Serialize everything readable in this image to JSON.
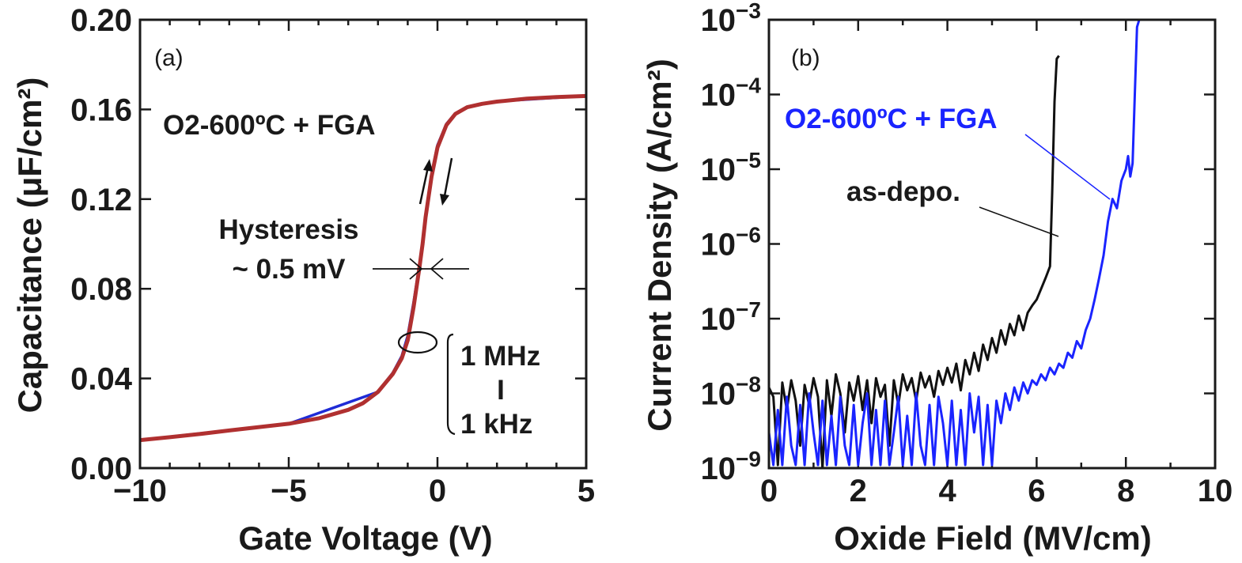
{
  "chart_data": [
    {
      "type": "line",
      "panel_label": "(a)",
      "xlabel": "Gate Voltage (V)",
      "ylabel": "Capacitance (μF/cm²)",
      "xlim": [
        -10,
        5
      ],
      "ylim": [
        0,
        0.2
      ],
      "x_ticks": [
        -10,
        -5,
        0,
        5
      ],
      "x_tick_labels": [
        "−10",
        "−5",
        "0",
        "5"
      ],
      "y_ticks": [
        0,
        0.04,
        0.08,
        0.12,
        0.16,
        0.2
      ],
      "y_tick_labels": [
        "0.00",
        "0.04",
        "0.08",
        "0.12",
        "0.16",
        "0.20"
      ],
      "grid": false,
      "series": [
        {
          "color": "#b03030",
          "x": [
            -10,
            -9,
            -8,
            -7,
            -6,
            -5,
            -4,
            -3,
            -2.5,
            -2,
            -1.5,
            -1.2,
            -1.0,
            -0.8,
            -0.6,
            -0.5,
            -0.4,
            -0.2,
            0,
            0.3,
            0.6,
            1.0,
            1.5,
            2,
            3,
            4,
            5
          ],
          "y": [
            0.0125,
            0.0138,
            0.0152,
            0.0168,
            0.0183,
            0.0198,
            0.0222,
            0.026,
            0.029,
            0.034,
            0.042,
            0.049,
            0.057,
            0.072,
            0.09,
            0.1,
            0.112,
            0.13,
            0.143,
            0.153,
            0.158,
            0.161,
            0.1625,
            0.1635,
            0.1648,
            0.1655,
            0.166
          ]
        },
        {
          "color": "#1f2bd6",
          "x": [
            -10,
            -5,
            -2,
            -1.5,
            -1.2,
            -1.0,
            -0.8,
            -0.6,
            -0.5,
            -0.4,
            -0.2,
            0,
            0.3,
            0.6,
            1.0,
            2,
            5
          ],
          "y": [
            0.0125,
            0.0198,
            0.034,
            0.0425,
            0.05,
            0.059,
            0.074,
            0.091,
            0.101,
            0.113,
            0.131,
            0.144,
            0.1535,
            0.1582,
            0.1612,
            0.1636,
            0.1661
          ]
        }
      ],
      "annotations": {
        "condition": "O2-600ºC + FGA",
        "hysteresis_title": "Hysteresis",
        "hysteresis_value": "~ 0.5 mV",
        "freq_high": "1 MHz",
        "freq_sep": "I",
        "freq_low": "1 kHz"
      }
    },
    {
      "type": "line",
      "panel_label": "(b)",
      "xlabel": "Oxide Field (MV/cm)",
      "ylabel": "Current Density (A/cm²)",
      "xlim": [
        0,
        10
      ],
      "ylim": [
        1e-09,
        0.001
      ],
      "yscale": "log",
      "x_ticks": [
        0,
        2,
        4,
        6,
        8,
        10
      ],
      "x_tick_labels": [
        "0",
        "2",
        "4",
        "6",
        "8",
        "10"
      ],
      "y_ticks": [
        -9,
        -8,
        -7,
        -6,
        -5,
        -4,
        -3
      ],
      "y_tick_labels": [
        "10−9",
        "10−8",
        "10−7",
        "10−6",
        "10−5",
        "10−4",
        "10−3"
      ],
      "grid": false,
      "series": [
        {
          "name": "as-depo.",
          "color": "#111111",
          "x": [
            0.0,
            0.1,
            0.2,
            0.3,
            0.4,
            0.5,
            0.6,
            0.7,
            0.8,
            0.9,
            1.0,
            1.1,
            1.2,
            1.3,
            1.4,
            1.5,
            1.6,
            1.7,
            1.8,
            1.9,
            2.0,
            2.1,
            2.2,
            2.3,
            2.4,
            2.5,
            2.6,
            2.7,
            2.8,
            2.9,
            3.0,
            3.1,
            3.2,
            3.3,
            3.4,
            3.5,
            3.6,
            3.7,
            3.8,
            3.9,
            4.0,
            4.1,
            4.2,
            4.3,
            4.4,
            4.5,
            4.6,
            4.7,
            4.8,
            4.9,
            5.0,
            5.1,
            5.2,
            5.3,
            5.4,
            5.5,
            5.6,
            5.7,
            5.8,
            5.9,
            6.0,
            6.1,
            6.2,
            6.3,
            6.35,
            6.4,
            6.45,
            6.5
          ],
          "y": [
            1.2e-08,
            9e-09,
            1.1e-09,
            1.4e-08,
            6e-09,
            1.5e-08,
            8e-09,
            2e-09,
            1.3e-08,
            7e-09,
            1.6e-08,
            9e-09,
            1e-09,
            1.5e-08,
            5e-09,
            1.8e-08,
            1e-08,
            3e-09,
            1.4e-08,
            8e-09,
            1.7e-08,
            6e-09,
            1.5e-08,
            4e-09,
            1.6e-08,
            9e-09,
            1.3e-08,
            2e-09,
            1.5e-08,
            7e-09,
            1.8e-08,
            1.1e-08,
            1.6e-08,
            8e-09,
            1.9e-08,
            1.2e-08,
            1.7e-08,
            9e-09,
            2e-08,
            1.3e-08,
            2.2e-08,
            1.4e-08,
            2.5e-08,
            1.1e-08,
            2.8e-08,
            1.8e-08,
            3.5e-08,
            2e-08,
            4.5e-08,
            2.8e-08,
            5.5e-08,
            3.5e-08,
            7e-08,
            4.5e-08,
            8.5e-08,
            6e-08,
            1.1e-07,
            7e-08,
            1.2e-07,
            1.5e-07,
            1.8e-07,
            2.5e-07,
            3.5e-07,
            5e-07,
            5e-06,
            8e-05,
            0.0003,
            0.00033
          ]
        },
        {
          "name": "O2-600ºC + FGA",
          "color": "#1a24ff",
          "x": [
            0.0,
            0.1,
            0.2,
            0.3,
            0.4,
            0.5,
            0.6,
            0.7,
            0.8,
            0.9,
            1.0,
            1.1,
            1.2,
            1.3,
            1.4,
            1.5,
            1.6,
            1.7,
            1.8,
            1.9,
            2.0,
            2.1,
            2.2,
            2.3,
            2.4,
            2.5,
            2.6,
            2.7,
            2.8,
            2.9,
            3.0,
            3.1,
            3.2,
            3.3,
            3.4,
            3.5,
            3.6,
            3.7,
            3.8,
            3.9,
            4.0,
            4.1,
            4.2,
            4.3,
            4.4,
            4.5,
            4.6,
            4.7,
            4.8,
            4.9,
            5.0,
            5.1,
            5.2,
            5.3,
            5.4,
            5.5,
            5.6,
            5.7,
            5.8,
            5.9,
            6.0,
            6.1,
            6.2,
            6.3,
            6.4,
            6.5,
            6.6,
            6.7,
            6.8,
            6.9,
            7.0,
            7.1,
            7.2,
            7.3,
            7.4,
            7.5,
            7.6,
            7.7,
            7.8,
            7.9,
            8.0,
            8.05,
            8.1,
            8.15,
            8.2,
            8.25,
            8.3
          ],
          "y": [
            3e-09,
            1.1e-09,
            6e-09,
            1.1e-09,
            9e-09,
            2e-09,
            1.1e-09,
            7e-09,
            1.1e-09,
            1e-08,
            3e-09,
            1.1e-09,
            8e-09,
            1.1e-09,
            5e-09,
            1.1e-09,
            9e-09,
            2e-09,
            1.1e-09,
            7e-09,
            1.1e-09,
            4e-09,
            1e-08,
            1.1e-09,
            6e-09,
            1.1e-09,
            8e-09,
            1.1e-09,
            3e-09,
            9e-09,
            1.1e-09,
            5e-09,
            1.1e-09,
            1e-08,
            2e-09,
            1.1e-09,
            7e-09,
            1.1e-09,
            9e-09,
            4e-09,
            1.1e-09,
            8e-09,
            1.1e-09,
            6e-09,
            1.1e-09,
            1e-08,
            3e-09,
            9e-09,
            1.1e-09,
            7e-09,
            1.1e-09,
            8e-09,
            4e-09,
            1e-08,
            6e-09,
            1.2e-08,
            8e-09,
            1.4e-08,
            1e-08,
            1.5e-08,
            1.3e-08,
            1.8e-08,
            1.5e-08,
            2.2e-08,
            1.8e-08,
            2.5e-08,
            2.2e-08,
            3.5e-08,
            3e-08,
            5e-08,
            4e-08,
            7e-08,
            1e-07,
            1.8e-07,
            3.5e-07,
            7e-07,
            2e-06,
            4e-06,
            3e-06,
            7e-06,
            1e-05,
            1.5e-05,
            8e-06,
            1.2e-05,
            0.0001,
            0.0008,
            0.001
          ]
        }
      ],
      "annotations": {
        "series_b_label": "O2-600ºC + FGA",
        "series_a_label": "as-depo."
      }
    }
  ]
}
